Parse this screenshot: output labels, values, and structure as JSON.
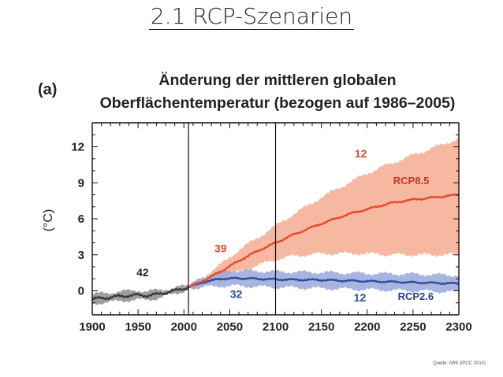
{
  "slide": {
    "title": "2.1 RCP-Szenarien",
    "source": "Quelle: AR5 (IPCC 2014)"
  },
  "chart_data": {
    "type": "line",
    "panel_label": "(a)",
    "title_line1": "Änderung der mittleren globalen",
    "title_line2": "Oberflächentemperatur (bezogen auf 1986–2005)",
    "ylabel": "(°C)",
    "xlabel": "",
    "xlim": [
      1900,
      2300
    ],
    "ylim": [
      -2,
      14
    ],
    "xticks": [
      1900,
      1950,
      2000,
      2050,
      2100,
      2150,
      2200,
      2250,
      2300
    ],
    "yticks": [
      0,
      3,
      6,
      9,
      12
    ],
    "vlines": [
      2005,
      2100
    ],
    "colors": {
      "historical": "#3a3a3a",
      "historical_band": "#9a9a9a",
      "rcp85": "#e8492a",
      "rcp85_band": "#f6b49c",
      "rcp26": "#2b4d9c",
      "rcp26_band": "#9aa8dc"
    },
    "series": [
      {
        "name": "",
        "key": "historical",
        "x": [
          1900,
          1910,
          1920,
          1930,
          1940,
          1950,
          1960,
          1970,
          1980,
          1990,
          2000,
          2005
        ],
        "y": [
          -0.7,
          -0.6,
          -0.55,
          -0.45,
          -0.4,
          -0.35,
          -0.4,
          -0.3,
          -0.15,
          0.0,
          0.2,
          0.3
        ],
        "y_low": [
          -1.1,
          -1.0,
          -0.95,
          -0.85,
          -0.8,
          -0.75,
          -0.75,
          -0.65,
          -0.45,
          -0.25,
          0.0,
          0.1
        ],
        "y_high": [
          -0.3,
          -0.2,
          -0.15,
          -0.05,
          0.0,
          0.05,
          -0.05,
          0.05,
          0.15,
          0.25,
          0.4,
          0.5
        ]
      },
      {
        "name": "RCP8.5",
        "key": "rcp85",
        "x": [
          2005,
          2020,
          2040,
          2060,
          2080,
          2100,
          2120,
          2150,
          2180,
          2200,
          2225,
          2250,
          2275,
          2300
        ],
        "y": [
          0.3,
          0.8,
          1.6,
          2.5,
          3.3,
          4.0,
          4.7,
          5.6,
          6.4,
          6.8,
          7.3,
          7.6,
          7.8,
          8.0
        ],
        "y_low": [
          0.2,
          0.5,
          1.0,
          1.6,
          2.1,
          2.6,
          2.9,
          3.1,
          3.1,
          3.1,
          3.0,
          3.0,
          3.0,
          3.0
        ],
        "y_high": [
          0.4,
          1.1,
          2.2,
          3.4,
          4.4,
          5.4,
          6.4,
          7.8,
          9.0,
          9.8,
          10.6,
          11.3,
          12.0,
          12.7
        ]
      },
      {
        "name": "RCP2.6",
        "key": "rcp26",
        "x": [
          2005,
          2020,
          2040,
          2060,
          2080,
          2100,
          2150,
          2200,
          2250,
          2300
        ],
        "y": [
          0.3,
          0.7,
          1.0,
          1.05,
          1.0,
          0.95,
          0.9,
          0.8,
          0.7,
          0.6
        ],
        "y_low": [
          0.2,
          0.3,
          0.4,
          0.4,
          0.35,
          0.3,
          0.2,
          0.1,
          0.0,
          -0.1
        ],
        "y_high": [
          0.4,
          1.1,
          1.6,
          1.7,
          1.65,
          1.6,
          1.55,
          1.45,
          1.4,
          1.3
        ]
      }
    ],
    "annotations": [
      {
        "text": "42",
        "x": 1955,
        "y": 1.2,
        "color": "#222222"
      },
      {
        "text": "39",
        "x": 2040,
        "y": 3.2,
        "color": "#e8492a"
      },
      {
        "text": "32",
        "x": 2057,
        "y": -0.6,
        "color": "#2b4d9c"
      },
      {
        "text": "12",
        "x": 2193,
        "y": 11.1,
        "color": "#e8492a"
      },
      {
        "text": "12",
        "x": 2192,
        "y": -0.9,
        "color": "#2b4d9c"
      },
      {
        "text": "RCP8.5",
        "x": 2248,
        "y": 8.9,
        "color": "#c0392b"
      },
      {
        "text": "RCP2.6",
        "x": 2253,
        "y": -0.75,
        "color": "#1f3f8a"
      }
    ],
    "grid": false,
    "legend": "none"
  }
}
